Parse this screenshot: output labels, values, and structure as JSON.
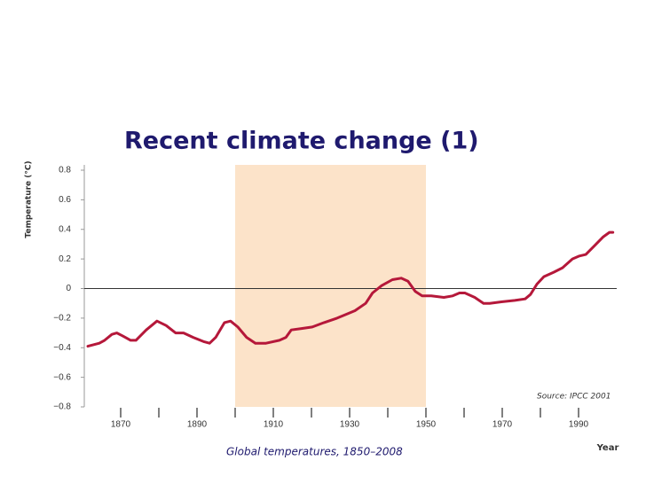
{
  "chart_data": {
    "type": "line",
    "title": "Recent climate change (1)",
    "ylabel": "Temperature (°C)",
    "xlabel": "Year",
    "source": "Source: IPCC 2001",
    "caption": "Global temperatures, 1850–2008",
    "xlim": [
      1860,
      2000
    ],
    "ylim": [
      -0.8,
      0.8
    ],
    "xticks": [
      1870,
      1890,
      1910,
      1930,
      1950,
      1970,
      1990
    ],
    "xminor_ticks": [
      1880,
      1900,
      1920,
      1940,
      1960,
      1980
    ],
    "yticks": [
      {
        "value": -0.8,
        "label": "−0.8"
      },
      {
        "value": -0.6,
        "label": "−0.6"
      },
      {
        "value": -0.4,
        "label": "−0.4"
      },
      {
        "value": -0.2,
        "label": "−0.2"
      },
      0,
      0.2,
      0.4,
      0.6,
      0.8
    ],
    "shaded_span": [
      1900,
      1950
    ],
    "shaded_color": "#fce3c9",
    "reference_line": 0,
    "x": [
      1861.4,
      1864.4,
      1865.8,
      1867.7,
      1869,
      1870.5,
      1872.6,
      1874,
      1876.7,
      1879.5,
      1881.9,
      1884.4,
      1886.5,
      1889,
      1891.9,
      1893.3,
      1894.9,
      1897.2,
      1898.8,
      1900.7,
      1903,
      1905.3,
      1908.1,
      1911.6,
      1913.3,
      1914.7,
      1917.4,
      1920.2,
      1923.3,
      1926.7,
      1928.6,
      1931.4,
      1934.2,
      1936,
      1938.4,
      1941.2,
      1943.5,
      1945.3,
      1947.2,
      1949,
      1951.4,
      1954.7,
      1957,
      1958.8,
      1960.2,
      1962.8,
      1965.1,
      1966.7,
      1969.8,
      1973.3,
      1976,
      1977.4,
      1979.1,
      1980.9,
      1983.5,
      1985.8,
      1988.4,
      1990.2,
      1991.9,
      1994.2,
      1996.5,
      1998.1,
      1999
    ],
    "series": [
      {
        "color": "#b5183a",
        "values": [
          -0.39,
          -0.37,
          -0.35,
          -0.31,
          -0.3,
          -0.32,
          -0.35,
          -0.35,
          -0.28,
          -0.22,
          -0.25,
          -0.3,
          -0.3,
          -0.33,
          -0.36,
          -0.37,
          -0.33,
          -0.23,
          -0.22,
          -0.26,
          -0.33,
          -0.37,
          -0.37,
          -0.35,
          -0.33,
          -0.28,
          -0.27,
          -0.26,
          -0.23,
          -0.2,
          -0.18,
          -0.15,
          -0.1,
          -0.03,
          0.02,
          0.06,
          0.07,
          0.05,
          -0.02,
          -0.05,
          -0.05,
          -0.06,
          -0.05,
          -0.03,
          -0.03,
          -0.06,
          -0.1,
          -0.1,
          -0.09,
          -0.08,
          -0.07,
          -0.04,
          0.03,
          0.08,
          0.11,
          0.14,
          0.2,
          0.22,
          0.23,
          0.29,
          0.35,
          0.38,
          0.38
        ]
      }
    ]
  }
}
